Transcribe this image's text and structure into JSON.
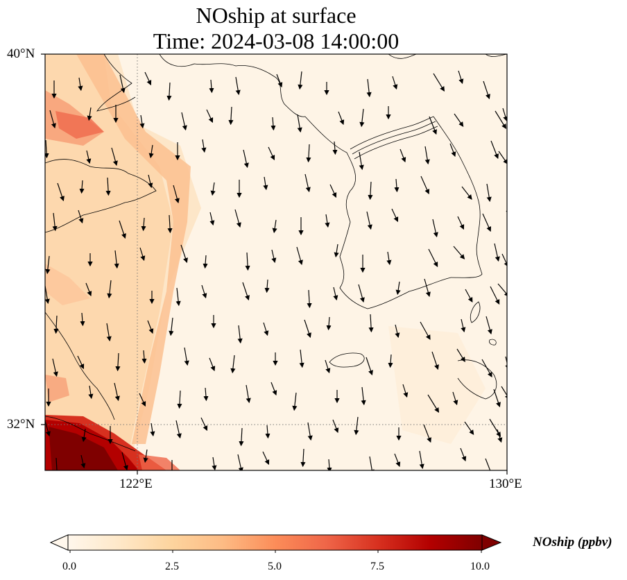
{
  "title": {
    "line1": "NOship at surface",
    "line2": "Time: 2024-03-08 14:00:00"
  },
  "map": {
    "lat_labels": [
      "40°N",
      "32°N"
    ],
    "lon_labels": [
      "122°E",
      "130°E"
    ],
    "lon_range": [
      118,
      130
    ],
    "lat_range": [
      31,
      40
    ],
    "gridlines": "dotted",
    "wind_vectors": true
  },
  "colorbar": {
    "label": "NOship (ppbv)",
    "ticks": [
      "0.0",
      "2.5",
      "5.0",
      "7.5",
      "10.0"
    ],
    "range": [
      0,
      10
    ],
    "extend": "both",
    "colormap": "OrRd",
    "colors": [
      "#fff7ec",
      "#fee8c8",
      "#fdd49e",
      "#fdbb84",
      "#fc8d59",
      "#ef6548",
      "#d7301f",
      "#b30000",
      "#7f0000"
    ]
  }
}
